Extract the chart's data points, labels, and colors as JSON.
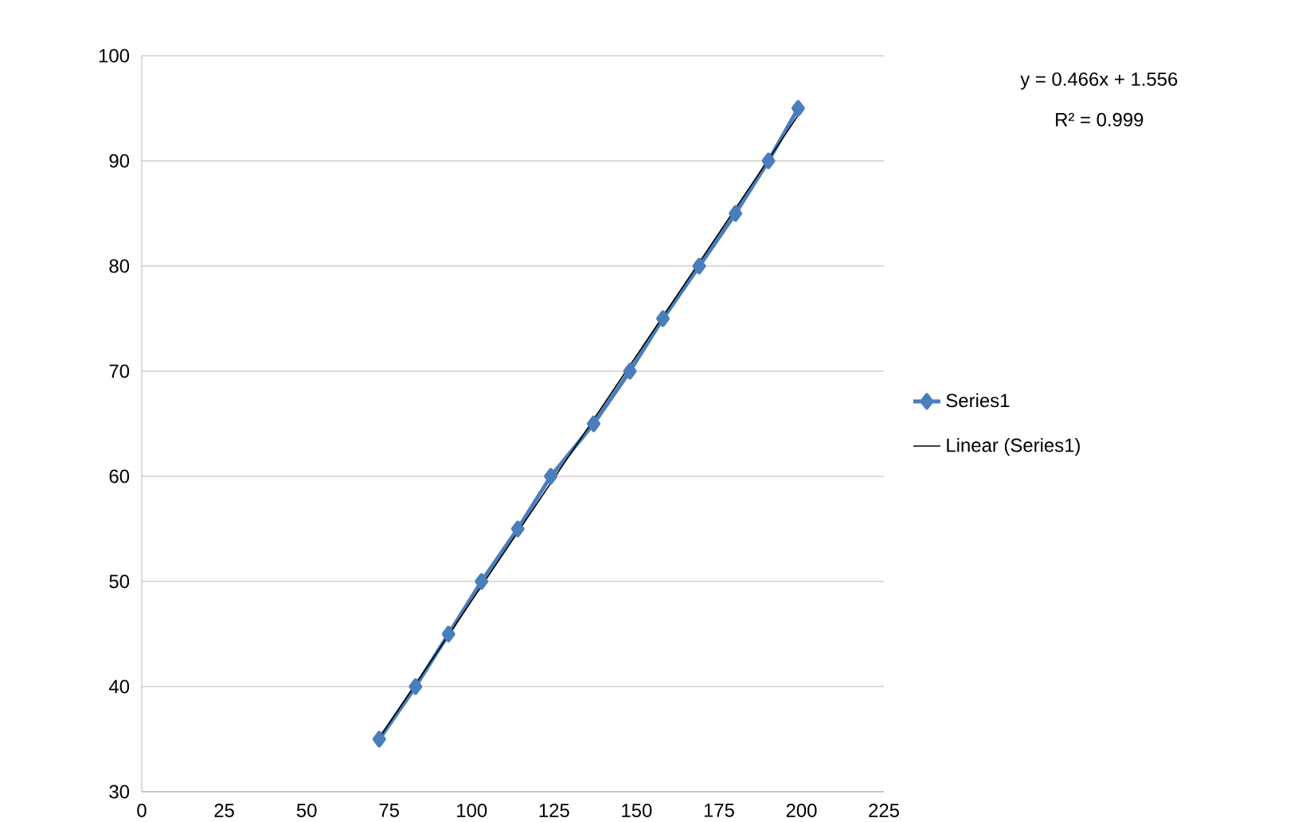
{
  "chart_data": {
    "type": "line",
    "xlim": [
      0,
      225
    ],
    "ylim": [
      30,
      100
    ],
    "xticks": [
      0,
      25,
      50,
      75,
      100,
      125,
      150,
      175,
      200,
      225
    ],
    "yticks": [
      30,
      40,
      50,
      60,
      70,
      80,
      90,
      100
    ],
    "grid": "y",
    "legend": "right",
    "annotations": [
      "y = 0.466x + 1.556",
      "R² = 0.999"
    ],
    "series": [
      {
        "name": "Series1",
        "color": "#4a7ebb",
        "marker": "diamond",
        "x": [
          72,
          83,
          93,
          103,
          114,
          124,
          137,
          148,
          158,
          169,
          180,
          190,
          199
        ],
        "values": [
          35,
          40,
          45,
          50,
          55,
          60,
          65,
          70,
          75,
          80,
          85,
          90,
          95
        ]
      },
      {
        "name": "Linear (Series1)",
        "color": "#000000",
        "marker": "none",
        "x": [
          72,
          200
        ],
        "values": [
          35.1,
          94.8
        ]
      }
    ]
  }
}
